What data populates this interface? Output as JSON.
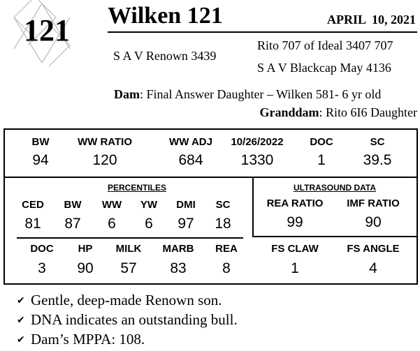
{
  "lot_number": "121",
  "title": "Wilken 121",
  "birth_date": "APRIL  10, 2021",
  "pedigree": {
    "sire": "S A V Renown 3439",
    "sire_sire": "Rito 707 of Ideal 3407 707",
    "sire_dam": "S A V Blackcap May 4136",
    "dam_label": "Dam",
    "dam": ": Final Answer Daughter – Wilken 581- 6 yr old",
    "granddam_label": "Granddam",
    "granddam": ": Rito 6I6 Daughter"
  },
  "top_stats": [
    {
      "label": "BW",
      "value": "94"
    },
    {
      "label": "WW RATIO",
      "value": "120"
    },
    {
      "label": "WW ADJ",
      "value": "684"
    },
    {
      "label": "10/26/2022",
      "value": "1330"
    },
    {
      "label": "DOC",
      "value": "1"
    },
    {
      "label": "SC",
      "value": "39.5"
    }
  ],
  "percentiles": {
    "title": "PERCENTILES",
    "row1": [
      {
        "label": "CED",
        "value": "81"
      },
      {
        "label": "BW",
        "value": "87"
      },
      {
        "label": "WW",
        "value": "6"
      },
      {
        "label": "YW",
        "value": "6"
      },
      {
        "label": "DMI",
        "value": "97"
      },
      {
        "label": "SC",
        "value": "18"
      }
    ],
    "row2": [
      {
        "label": "DOC",
        "value": "3"
      },
      {
        "label": "HP",
        "value": "90"
      },
      {
        "label": "MILK",
        "value": "57"
      },
      {
        "label": "MARB",
        "value": "83"
      },
      {
        "label": "REA",
        "value": "8"
      }
    ]
  },
  "ultrasound": {
    "title": "ULTRASOUND DATA",
    "items": [
      {
        "label": "REA RATIO",
        "value": "99"
      },
      {
        "label": "IMF RATIO",
        "value": "90"
      }
    ]
  },
  "foot_scores": [
    {
      "label": "FS CLAW",
      "value": "1"
    },
    {
      "label": "FS ANGLE",
      "value": "4"
    }
  ],
  "bullets": [
    "Gentle, deep-made Renown son.",
    "DNA indicates an outstanding bull.",
    "Dam’s MPPA: 108."
  ],
  "check_icon": "✔"
}
